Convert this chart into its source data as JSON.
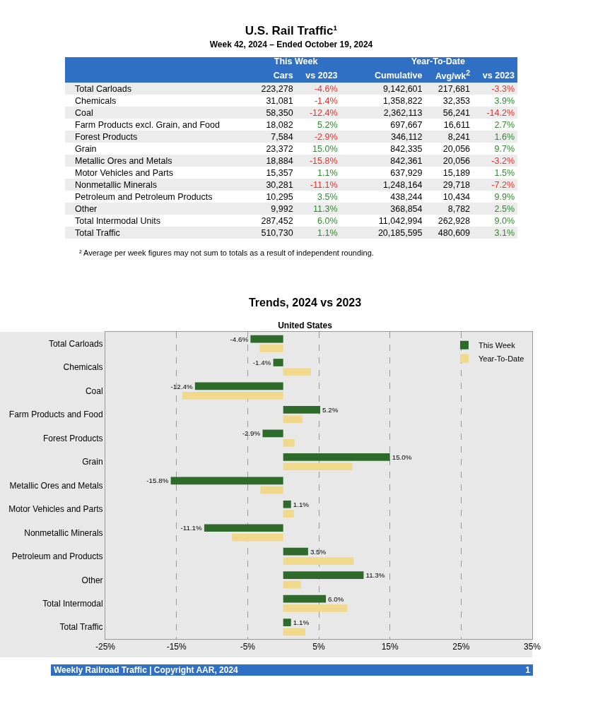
{
  "chart_data": [
    {
      "type": "other",
      "title": "U.S. Rail Traffic¹",
      "subtitle": "Week 42, 2024 – Ended October 19, 2024",
      "categories": [
        "Total Carloads",
        "Chemicals",
        "Coal",
        "Farm Products excl. Grain, and Food",
        "Forest Products",
        "Grain",
        "Metallic Ores and Metals",
        "Motor Vehicles and Parts",
        "Nonmetallic Minerals",
        "Petroleum and Petroleum Products",
        "Other",
        "Total Intermodal Units",
        "Total Traffic"
      ],
      "series": [
        {
          "name": "Cars",
          "values": [
            223278,
            31081,
            58350,
            18082,
            7584,
            23372,
            18884,
            15357,
            30281,
            10295,
            9992,
            287452,
            510730
          ],
          "value_labels": [
            "223,278",
            "31,081",
            "58,350",
            "18,082",
            "7,584",
            "23,372",
            "18,884",
            "15,357",
            "30,281",
            "10,295",
            "9,992",
            "287,452",
            "510,730"
          ]
        },
        {
          "name": "vs 2023",
          "colors": [
            "#e8322b",
            "#e8322b",
            "#e8322b",
            "#2e8b2e",
            "#e8322b",
            "#2e8b2e",
            "#e8322b",
            "#2e8b2e",
            "#e8322b",
            "#2e8b2e",
            "#2e8b2e",
            "#2e8b2e",
            "#2e8b2e"
          ],
          "values": [
            -4.6,
            -1.4,
            -12.4,
            5.2,
            -2.9,
            15.0,
            -15.8,
            1.1,
            -11.1,
            3.5,
            11.3,
            6.0,
            1.1
          ],
          "value_labels": [
            "-4.6%",
            "-1.4%",
            "-12.4%",
            "5.2%",
            "-2.9%",
            "15.0%",
            "-15.8%",
            "1.1%",
            "-11.1%",
            "3.5%",
            "11.3%",
            "6.0%",
            "1.1%"
          ]
        },
        {
          "name": "Cumulative",
          "values": [
            9142601,
            1358822,
            2362113,
            697667,
            346112,
            842335,
            842361,
            637929,
            1248164,
            438244,
            368854,
            11042994,
            20185595
          ],
          "value_labels": [
            "9,142,601",
            "1,358,822",
            "2,362,113",
            "697,667",
            "346,112",
            "842,335",
            "842,361",
            "637,929",
            "1,248,164",
            "438,244",
            "368,854",
            "11,042,994",
            "20,185,595"
          ]
        },
        {
          "name": "Avg/wk$^{2}$",
          "values": [
            217681,
            32353,
            56241,
            16611,
            8241,
            20056,
            20056,
            15189,
            29718,
            10434,
            8782,
            262928,
            480609
          ],
          "value_labels": [
            "217,681",
            "32,353",
            "56,241",
            "16,611",
            "8,241",
            "20,056",
            "20,056",
            "15,189",
            "29,718",
            "10,434",
            "8,782",
            "262,928",
            "480,609"
          ]
        },
        {
          "name": "vs 2023",
          "colors": [
            "#e8322b",
            "#2e8b2e",
            "#e8322b",
            "#2e8b2e",
            "#2e8b2e",
            "#2e8b2e",
            "#e8322b",
            "#2e8b2e",
            "#e8322b",
            "#2e8b2e",
            "#2e8b2e",
            "#2e8b2e",
            "#2e8b2e"
          ],
          "values": [
            -3.3,
            3.9,
            -14.2,
            2.7,
            1.6,
            9.7,
            -3.2,
            1.5,
            -7.2,
            9.9,
            2.5,
            9.0,
            3.1
          ],
          "value_labels": [
            "-3.3%",
            "3.9%",
            "-14.2%",
            "2.7%",
            "1.6%",
            "9.7%",
            "-3.2%",
            "1.5%",
            "-7.2%",
            "9.9%",
            "2.5%",
            "9.0%",
            "3.1%"
          ]
        }
      ],
      "annotations": [
        "This Week",
        "Year-To-Date",
        "² Average per week figures may not sum to totals as a result of independent rounding."
      ]
    },
    {
      "type": "bar",
      "orientation": "horizontal",
      "title": "Trends, 2024 vs 2023",
      "subtitle": "United States",
      "categories": [
        "Total Carloads",
        "Chemicals",
        "Coal",
        "Farm Products and Food",
        "Forest Products",
        "Grain",
        "Metallic Ores and Metals",
        "Motor Vehicles and Parts",
        "Nonmetallic Minerals",
        "Petroleum and Products",
        "Other",
        "Total Intermodal",
        "Total Traffic"
      ],
      "series": [
        {
          "name": "This Week",
          "color": "#2e6b2a",
          "values": [
            -4.6,
            -1.4,
            -12.4,
            5.2,
            -2.9,
            15.0,
            -15.8,
            1.1,
            -11.1,
            3.5,
            11.3,
            6.0,
            1.1
          ],
          "value_labels": [
            "-4.6%",
            "-1.4%",
            "-12.4%",
            "5.2%",
            "-2.9%",
            "15.0%",
            "-15.8%",
            "1.1%",
            "-11.1%",
            "3.5%",
            "11.3%",
            "6.0%",
            "1.1%"
          ]
        },
        {
          "name": "Year-To-Date",
          "color": "#f0d98a",
          "values": [
            -3.3,
            3.9,
            -14.2,
            2.7,
            1.6,
            9.7,
            -3.2,
            1.5,
            -7.2,
            9.9,
            2.5,
            9.0,
            3.1
          ]
        }
      ],
      "xlim": [
        -25,
        35
      ],
      "xticks": [
        {
          "value": -25,
          "label": "-25%"
        },
        {
          "value": -15,
          "label": "-15%"
        },
        {
          "value": -5,
          "label": "-5%"
        },
        {
          "value": 5,
          "label": "5%"
        },
        {
          "value": 15,
          "label": "15%"
        },
        {
          "value": 25,
          "label": "25%"
        },
        {
          "value": 35,
          "label": "35%"
        }
      ],
      "grid": "x",
      "legend": "top right",
      "annotations": [
        "Weekly Railroad Traffic | Copyright AAR, 2024",
        "1"
      ]
    }
  ]
}
